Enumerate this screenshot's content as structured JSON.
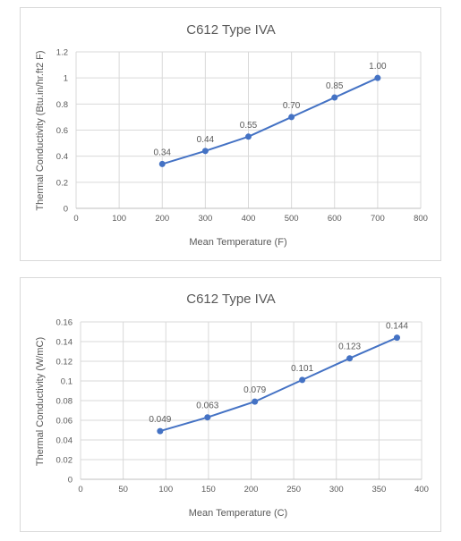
{
  "chart_data": [
    {
      "type": "line",
      "title": "C612 Type IVA",
      "xlabel": "Mean Temperature (F)",
      "ylabel": "Thermal Conductivity (Btu.in/hr.ft2 F)",
      "xlim": [
        0,
        800
      ],
      "ylim": [
        0,
        1.2
      ],
      "xticks": [
        "0",
        "100",
        "200",
        "300",
        "400",
        "500",
        "600",
        "700",
        "800"
      ],
      "yticks": [
        "0",
        "0.2",
        "0.4",
        "0.6",
        "0.8",
        "1",
        "1.2"
      ],
      "grid": true,
      "series": [
        {
          "x": [
            200,
            300,
            400,
            500,
            600,
            700
          ],
          "y": [
            0.34,
            0.44,
            0.55,
            0.7,
            0.85,
            1.0
          ],
          "labels": [
            "0.34",
            "0.44",
            "0.55",
            "0.70",
            "0.85",
            "1.00"
          ],
          "color": "#4472C4"
        }
      ]
    },
    {
      "type": "line",
      "title": "C612 Type IVA",
      "xlabel": "Mean Temperature (C)",
      "ylabel": "Thermal Conductivity (W/mC)",
      "xlim": [
        0,
        400
      ],
      "ylim": [
        0,
        0.16
      ],
      "xticks": [
        "0",
        "50",
        "100",
        "150",
        "200",
        "250",
        "300",
        "350",
        "400"
      ],
      "yticks": [
        "0",
        "0.02",
        "0.04",
        "0.06",
        "0.08",
        "0.1",
        "0.12",
        "0.14",
        "0.16"
      ],
      "grid": true,
      "series": [
        {
          "x": [
            93.3,
            148.9,
            204.4,
            260,
            315.6,
            371.1
          ],
          "y": [
            0.049,
            0.063,
            0.079,
            0.101,
            0.123,
            0.144
          ],
          "labels": [
            "0.049",
            "0.063",
            "0.079",
            "0.101",
            "0.123",
            "0.144"
          ],
          "color": "#4472C4"
        }
      ]
    }
  ]
}
